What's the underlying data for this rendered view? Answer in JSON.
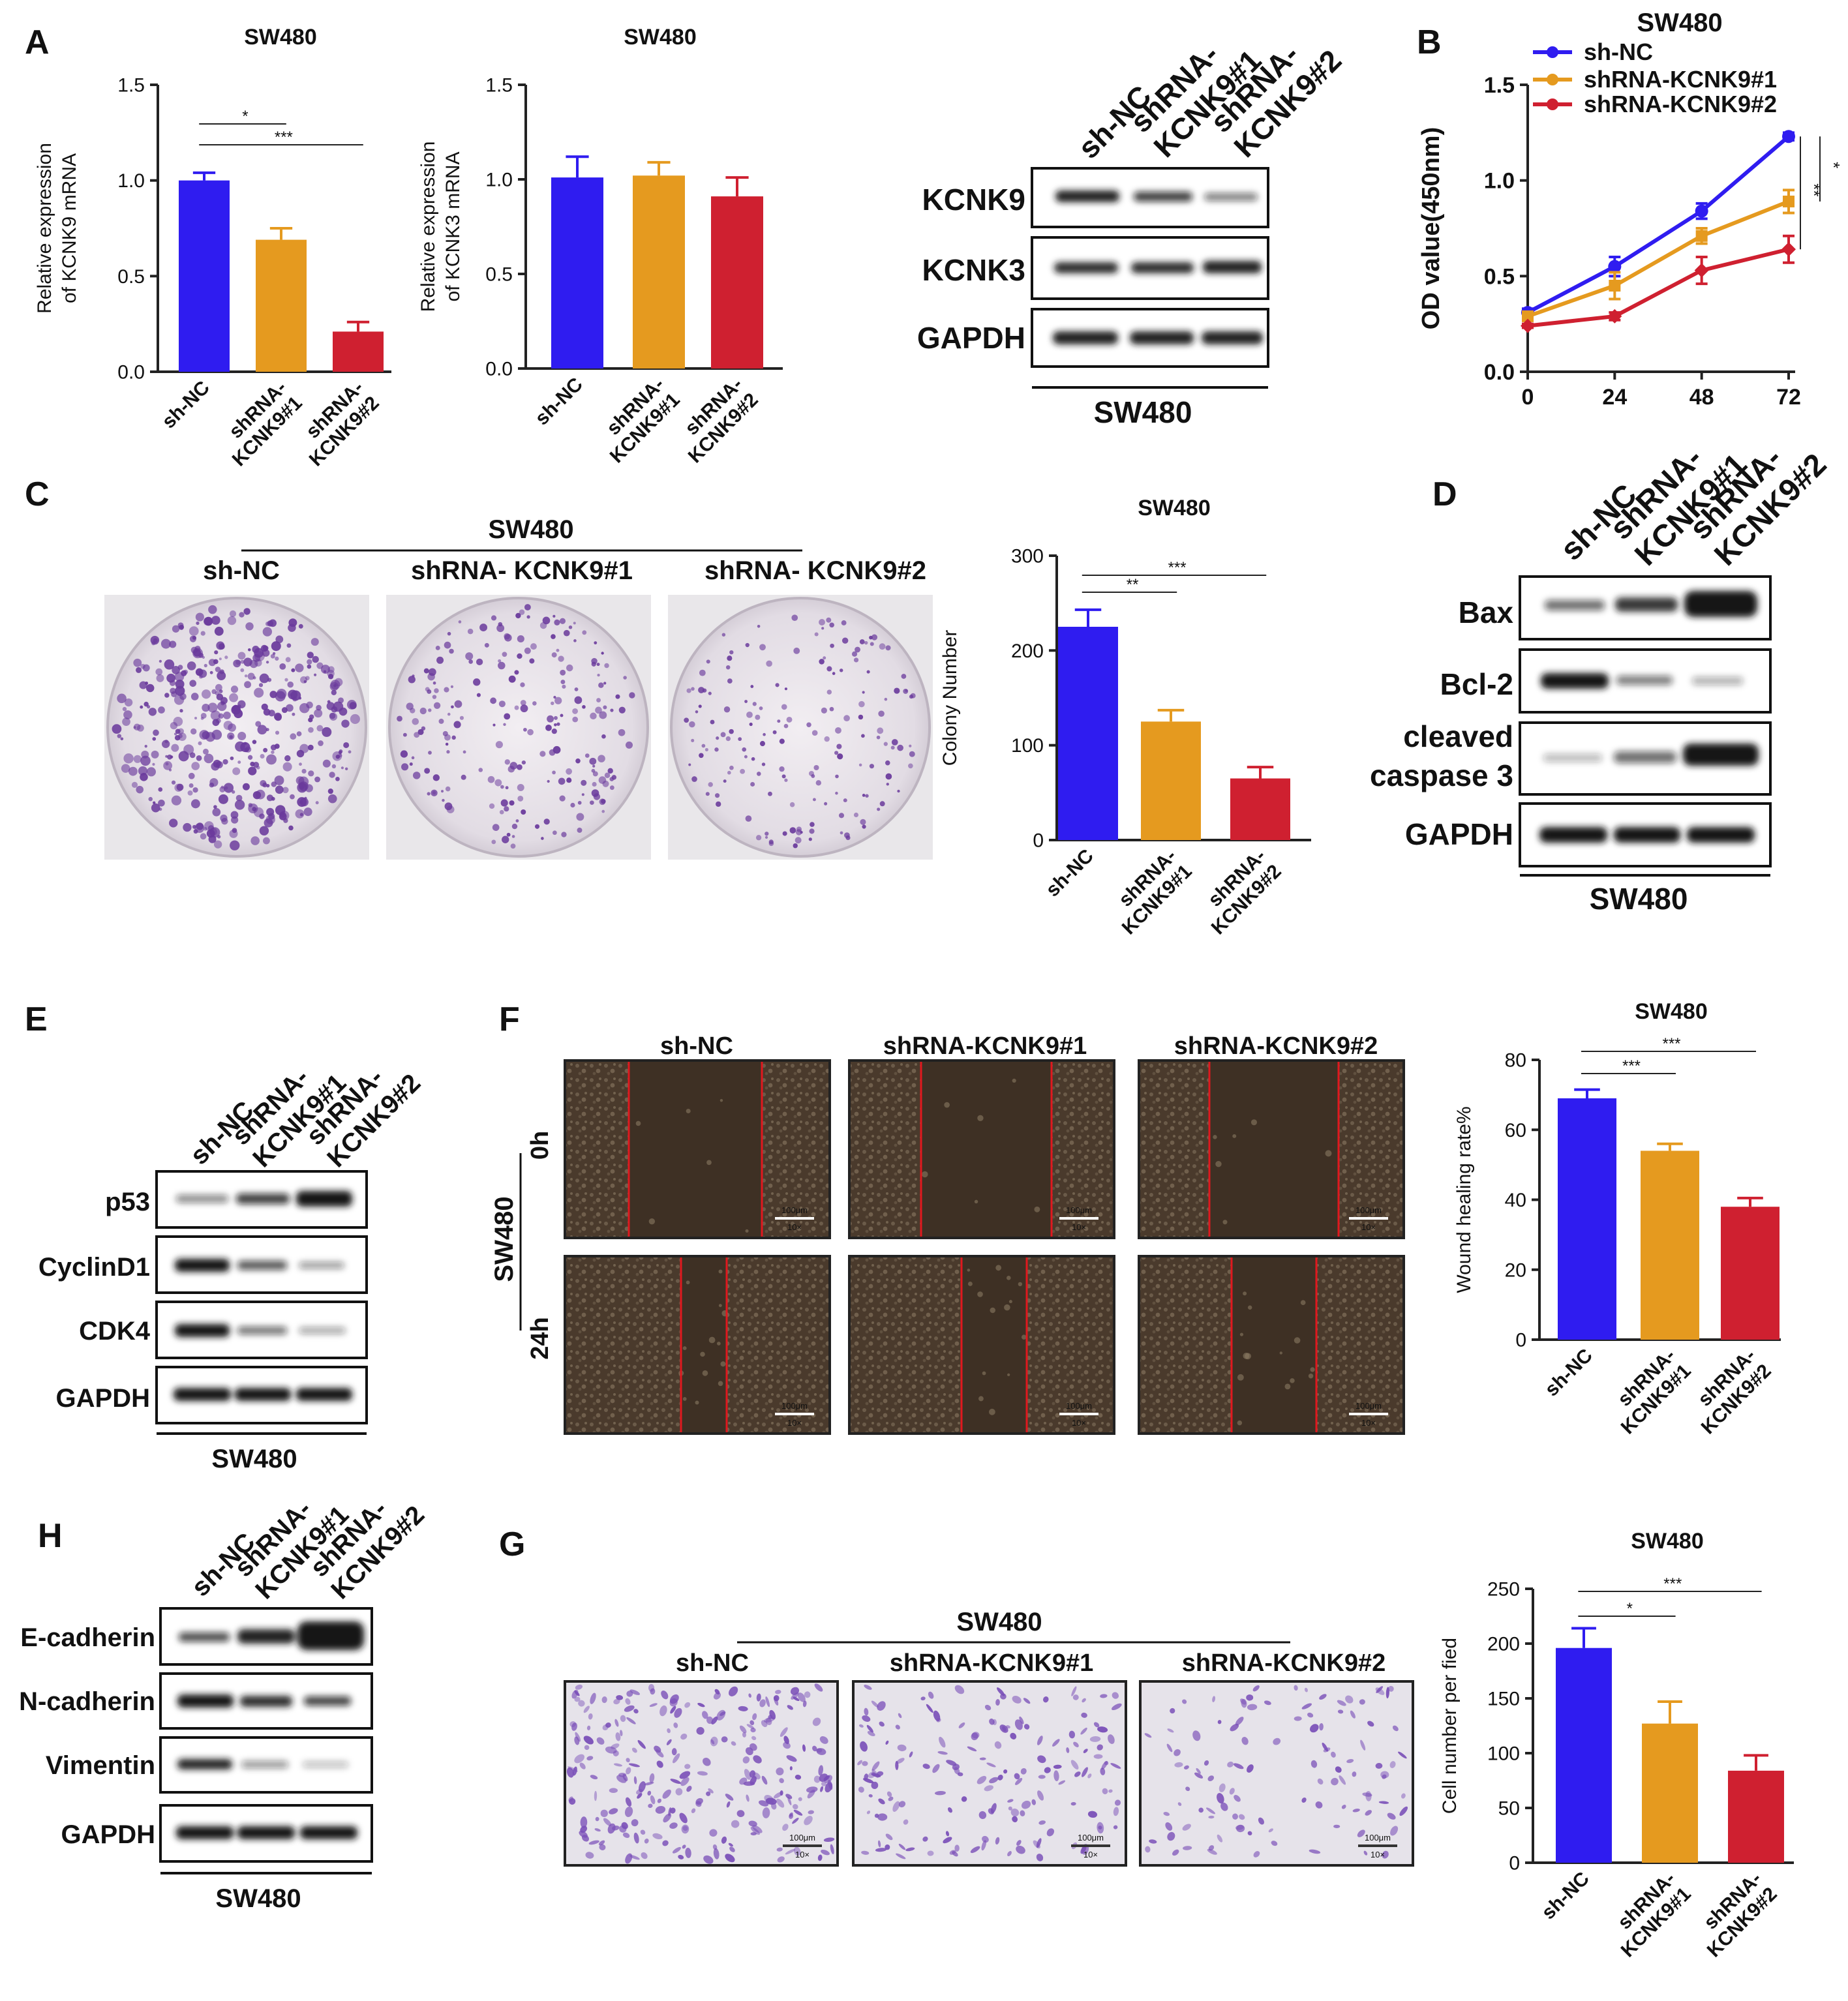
{
  "panel_letters": [
    "A",
    "B",
    "C",
    "D",
    "E",
    "F",
    "G",
    "H"
  ],
  "colors": {
    "blue": "#2f1cf0",
    "orange": "#e59a1f",
    "red": "#cf2030",
    "axis": "#222222",
    "blot_band": "#141414",
    "crystal_violet": "#6a3a9c",
    "microscopy": "#4a3a2c"
  },
  "sample_labels": {
    "sh_nc": "sh-NC",
    "kd1": "shRNA-KCNK9#1",
    "kd2": "shRNA-KCNK9#2",
    "kd1_split": [
      "shRNA-",
      "KCNK9#1"
    ],
    "kd2_split": [
      "shRNA-",
      "KCNK9#2"
    ],
    "kd1_spaced": "shRNA- KCNK9#1",
    "kd2_spaced": "shRNA- KCNK9#2",
    "cell_line": "SW480"
  },
  "blots": {
    "A": [
      "KCNK9",
      "KCNK3",
      "GAPDH"
    ],
    "D": [
      "Bax",
      "Bcl-2",
      "cleaved",
      "caspase 3",
      "GAPDH"
    ],
    "E": [
      "p53",
      "CyclinD1",
      "CDK4",
      "GAPDH"
    ],
    "H": [
      "E-cadherin",
      "N-cadherin",
      "Vimentin",
      "GAPDH"
    ]
  },
  "micro": {
    "time_0": "0h",
    "time_24": "24h",
    "scale_text": "100μm",
    "mag_text": "10×"
  },
  "chart_data": [
    {
      "id": "A1",
      "type": "bar",
      "title": "SW480",
      "ylabel": [
        "Relative expression",
        "of KCNK9 mRNA"
      ],
      "categories": [
        "sh-NC",
        "shRNA-KCNK9#1",
        "shRNA-KCNK9#2"
      ],
      "values": [
        1.0,
        0.69,
        0.21
      ],
      "errors": [
        0.04,
        0.06,
        0.05
      ],
      "ylim": [
        0,
        1.5
      ],
      "yticks": [
        "0.0",
        "0.5",
        "1.0",
        "1.5"
      ],
      "significance": [
        "*",
        "***"
      ]
    },
    {
      "id": "A2",
      "type": "bar",
      "title": "SW480",
      "ylabel": [
        "Relative expression",
        "of KCNK3 mRNA"
      ],
      "categories": [
        "sh-NC",
        "shRNA-KCNK9#1",
        "shRNA-KCNK9#2"
      ],
      "values": [
        1.01,
        1.02,
        0.91
      ],
      "errors": [
        0.11,
        0.07,
        0.1
      ],
      "ylim": [
        0,
        1.5
      ],
      "yticks": [
        "0.0",
        "0.5",
        "1.0",
        "1.5"
      ]
    },
    {
      "id": "B",
      "type": "line",
      "title": "SW480",
      "ylabel": "OD value(450nm)",
      "x": [
        0,
        24,
        48,
        72
      ],
      "xticks": [
        "0",
        "24",
        "48",
        "72"
      ],
      "ylim": [
        0,
        1.5
      ],
      "yticks": [
        "0.0",
        "0.5",
        "1.0",
        "1.5"
      ],
      "series": [
        {
          "name": "sh-NC",
          "values": [
            0.31,
            0.55,
            0.84,
            1.23
          ],
          "errors": [
            0.02,
            0.05,
            0.04,
            0.02
          ]
        },
        {
          "name": "shRNA-KCNK9#1",
          "values": [
            0.29,
            0.45,
            0.71,
            0.89
          ],
          "errors": [
            0.02,
            0.07,
            0.04,
            0.06
          ]
        },
        {
          "name": "shRNA-KCNK9#2",
          "values": [
            0.24,
            0.29,
            0.53,
            0.64
          ],
          "errors": [
            0.01,
            0.02,
            0.07,
            0.07
          ]
        }
      ],
      "significance": [
        "**",
        "*"
      ],
      "legend": "top"
    },
    {
      "id": "C",
      "type": "bar",
      "title": "SW480",
      "ylabel": "Colony Number",
      "categories": [
        "sh-NC",
        "shRNA-KCNK9#1",
        "shRNA-KCNK9#2"
      ],
      "values": [
        225,
        125,
        65
      ],
      "errors": [
        18,
        12,
        12
      ],
      "ylim": [
        0,
        300
      ],
      "yticks": [
        "0",
        "100",
        "200",
        "300"
      ],
      "significance": [
        "**",
        "***"
      ]
    },
    {
      "id": "F",
      "type": "bar",
      "title": "SW480",
      "ylabel": "Wound healing rate%",
      "categories": [
        "sh-NC",
        "shRNA-KCNK9#1",
        "shRNA-KCNK9#2"
      ],
      "values": [
        69,
        54,
        38
      ],
      "errors": [
        2.5,
        2,
        2.5
      ],
      "ylim": [
        0,
        80
      ],
      "yticks": [
        "0",
        "20",
        "40",
        "60",
        "80"
      ],
      "significance": [
        "***",
        "***"
      ]
    },
    {
      "id": "G",
      "type": "bar",
      "title": "SW480",
      "ylabel": "Cell number per fied",
      "categories": [
        "sh-NC",
        "shRNA-KCNK9#1",
        "shRNA-KCNK9#2"
      ],
      "values": [
        196,
        127,
        84
      ],
      "errors": [
        18,
        20,
        14
      ],
      "ylim": [
        0,
        250
      ],
      "yticks": [
        "0",
        "50",
        "100",
        "150",
        "200",
        "250"
      ],
      "significance": [
        "*",
        "***"
      ]
    }
  ]
}
